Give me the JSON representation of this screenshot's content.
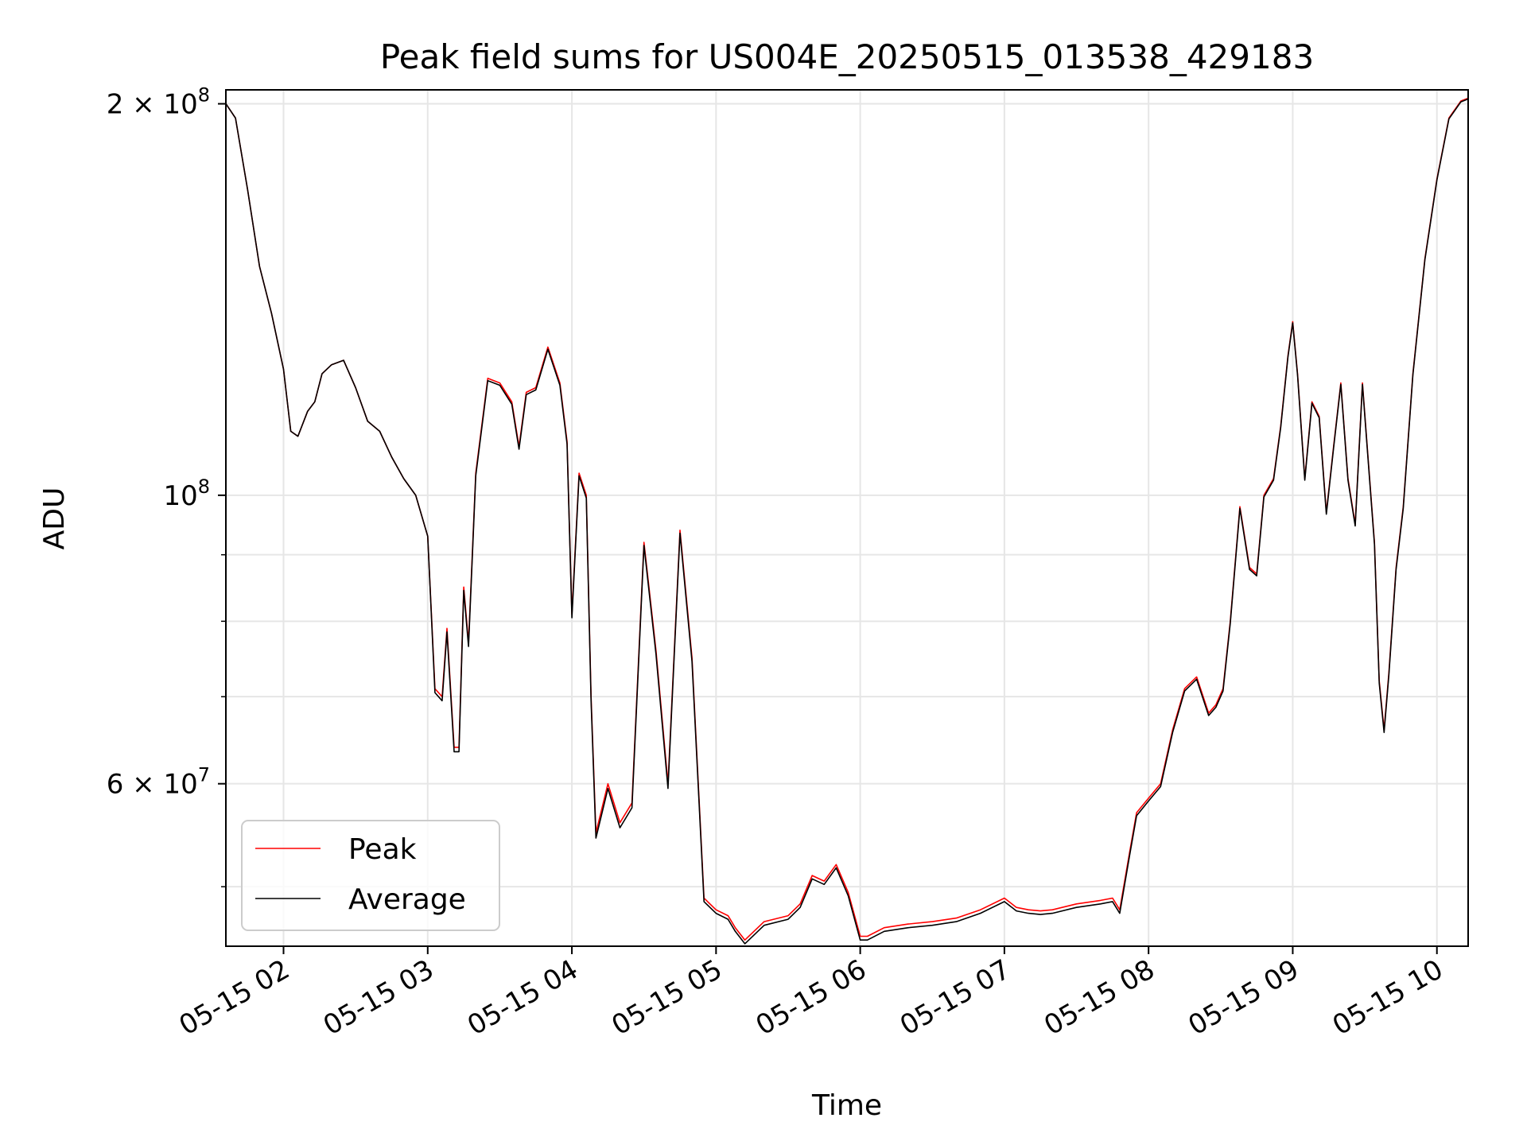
{
  "chart_data": {
    "type": "line",
    "title": "Peak field sums for US004E_20250515_013538_429183",
    "xlabel": "Time",
    "ylabel": "ADU",
    "yscale": "log",
    "ylim": [
      45000000,
      205000000
    ],
    "xlim": [
      "2025-05-15 01:36",
      "2025-05-15 10:13"
    ],
    "x_ticks": [
      {
        "t": "2025-05-15 02:00",
        "label": "05-15 02"
      },
      {
        "t": "2025-05-15 03:00",
        "label": "05-15 03"
      },
      {
        "t": "2025-05-15 04:00",
        "label": "05-15 04"
      },
      {
        "t": "2025-05-15 05:00",
        "label": "05-15 05"
      },
      {
        "t": "2025-05-15 06:00",
        "label": "05-15 06"
      },
      {
        "t": "2025-05-15 07:00",
        "label": "05-15 07"
      },
      {
        "t": "2025-05-15 08:00",
        "label": "05-15 08"
      },
      {
        "t": "2025-05-15 09:00",
        "label": "05-15 09"
      },
      {
        "t": "2025-05-15 10:00",
        "label": "05-15 10"
      }
    ],
    "y_ticks_major": [
      {
        "v": 60000000,
        "mant": "6",
        "exp": "7"
      },
      {
        "v": 100000000,
        "mant": "",
        "exp": "8"
      },
      {
        "v": 200000000,
        "mant": "2",
        "exp": "8"
      }
    ],
    "y_minor_values": [
      50000000,
      70000000,
      80000000,
      90000000
    ],
    "grid": true,
    "legend": {
      "placement": "lower-left"
    },
    "series": [
      {
        "name": "Peak",
        "color": "#ff0000",
        "x": [
          "2025-05-15 01:36",
          "2025-05-15 01:40",
          "2025-05-15 01:45",
          "2025-05-15 01:50",
          "2025-05-15 01:55",
          "2025-05-15 02:00",
          "2025-05-15 02:03",
          "2025-05-15 02:06",
          "2025-05-15 02:10",
          "2025-05-15 02:13",
          "2025-05-15 02:16",
          "2025-05-15 02:20",
          "2025-05-15 02:25",
          "2025-05-15 02:30",
          "2025-05-15 02:35",
          "2025-05-15 02:40",
          "2025-05-15 02:45",
          "2025-05-15 02:50",
          "2025-05-15 02:55",
          "2025-05-15 03:00",
          "2025-05-15 03:03",
          "2025-05-15 03:06",
          "2025-05-15 03:08",
          "2025-05-15 03:11",
          "2025-05-15 03:13",
          "2025-05-15 03:15",
          "2025-05-15 03:17",
          "2025-05-15 03:20",
          "2025-05-15 03:25",
          "2025-05-15 03:30",
          "2025-05-15 03:35",
          "2025-05-15 03:38",
          "2025-05-15 03:41",
          "2025-05-15 03:45",
          "2025-05-15 03:50",
          "2025-05-15 03:55",
          "2025-05-15 03:58",
          "2025-05-15 04:00",
          "2025-05-15 04:03",
          "2025-05-15 04:06",
          "2025-05-15 04:08",
          "2025-05-15 04:10",
          "2025-05-15 04:15",
          "2025-05-15 04:20",
          "2025-05-15 04:25",
          "2025-05-15 04:30",
          "2025-05-15 04:35",
          "2025-05-15 04:40",
          "2025-05-15 04:45",
          "2025-05-15 04:50",
          "2025-05-15 04:55",
          "2025-05-15 05:00",
          "2025-05-15 05:05",
          "2025-05-15 05:08",
          "2025-05-15 05:12",
          "2025-05-15 05:20",
          "2025-05-15 05:30",
          "2025-05-15 05:35",
          "2025-05-15 05:40",
          "2025-05-15 05:45",
          "2025-05-15 05:50",
          "2025-05-15 05:55",
          "2025-05-15 06:00",
          "2025-05-15 06:03",
          "2025-05-15 06:10",
          "2025-05-15 06:20",
          "2025-05-15 06:30",
          "2025-05-15 06:40",
          "2025-05-15 06:50",
          "2025-05-15 07:00",
          "2025-05-15 07:05",
          "2025-05-15 07:10",
          "2025-05-15 07:15",
          "2025-05-15 07:20",
          "2025-05-15 07:30",
          "2025-05-15 07:40",
          "2025-05-15 07:45",
          "2025-05-15 07:48",
          "2025-05-15 07:52",
          "2025-05-15 07:55",
          "2025-05-15 08:00",
          "2025-05-15 08:05",
          "2025-05-15 08:10",
          "2025-05-15 08:15",
          "2025-05-15 08:20",
          "2025-05-15 08:25",
          "2025-05-15 08:28",
          "2025-05-15 08:31",
          "2025-05-15 08:34",
          "2025-05-15 08:38",
          "2025-05-15 08:42",
          "2025-05-15 08:45",
          "2025-05-15 08:48",
          "2025-05-15 08:52",
          "2025-05-15 08:55",
          "2025-05-15 08:58",
          "2025-05-15 09:00",
          "2025-05-15 09:02",
          "2025-05-15 09:05",
          "2025-05-15 09:08",
          "2025-05-15 09:11",
          "2025-05-15 09:14",
          "2025-05-15 09:17",
          "2025-05-15 09:20",
          "2025-05-15 09:23",
          "2025-05-15 09:26",
          "2025-05-15 09:29",
          "2025-05-15 09:31",
          "2025-05-15 09:34",
          "2025-05-15 09:36",
          "2025-05-15 09:38",
          "2025-05-15 09:40",
          "2025-05-15 09:43",
          "2025-05-15 09:46",
          "2025-05-15 09:50",
          "2025-05-15 09:55",
          "2025-05-15 10:00",
          "2025-05-15 10:05",
          "2025-05-15 10:10",
          "2025-05-15 10:13"
        ],
        "y": [
          200000000,
          195000000,
          172000000,
          150000000,
          138000000,
          125000000,
          112000000,
          111000000,
          116000000,
          118000000,
          124000000,
          126000000,
          127000000,
          121000000,
          114000000,
          112000000,
          107000000,
          103000000,
          100000000,
          93000000,
          71000000,
          70000000,
          79000000,
          64000000,
          64000000,
          85000000,
          77000000,
          104000000,
          123000000,
          122000000,
          118000000,
          109000000,
          120000000,
          121000000,
          130000000,
          122000000,
          110000000,
          81000000,
          104000000,
          100000000,
          70000000,
          55000000,
          60000000,
          56000000,
          58000000,
          92000000,
          76000000,
          60000000,
          94000000,
          75000000,
          49000000,
          48000000,
          47500000,
          46500000,
          45500000,
          47000000,
          47500000,
          48500000,
          51000000,
          50500000,
          52000000,
          49500000,
          45800000,
          45800000,
          46500000,
          46800000,
          47000000,
          47300000,
          48000000,
          49000000,
          48200000,
          48000000,
          47900000,
          48000000,
          48500000,
          48800000,
          49000000,
          48000000,
          53000000,
          57000000,
          58500000,
          60000000,
          66000000,
          71000000,
          72500000,
          68000000,
          69000000,
          71000000,
          80000000,
          98000000,
          88000000,
          87000000,
          100000000,
          103000000,
          113000000,
          128000000,
          136000000,
          124000000,
          103000000,
          118000000,
          115000000,
          97000000,
          109000000,
          122000000,
          103000000,
          95000000,
          122000000,
          109000000,
          92000000,
          72000000,
          66000000,
          73000000,
          88000000,
          98000000,
          124000000,
          152000000,
          175000000,
          195000000,
          201000000,
          202000000
        ]
      },
      {
        "name": "Average",
        "color": "#000000",
        "x": [
          "2025-05-15 01:36",
          "2025-05-15 01:40",
          "2025-05-15 01:45",
          "2025-05-15 01:50",
          "2025-05-15 01:55",
          "2025-05-15 02:00",
          "2025-05-15 02:03",
          "2025-05-15 02:06",
          "2025-05-15 02:10",
          "2025-05-15 02:13",
          "2025-05-15 02:16",
          "2025-05-15 02:20",
          "2025-05-15 02:25",
          "2025-05-15 02:30",
          "2025-05-15 02:35",
          "2025-05-15 02:40",
          "2025-05-15 02:45",
          "2025-05-15 02:50",
          "2025-05-15 02:55",
          "2025-05-15 03:00",
          "2025-05-15 03:03",
          "2025-05-15 03:06",
          "2025-05-15 03:08",
          "2025-05-15 03:11",
          "2025-05-15 03:13",
          "2025-05-15 03:15",
          "2025-05-15 03:17",
          "2025-05-15 03:20",
          "2025-05-15 03:25",
          "2025-05-15 03:30",
          "2025-05-15 03:35",
          "2025-05-15 03:38",
          "2025-05-15 03:41",
          "2025-05-15 03:45",
          "2025-05-15 03:50",
          "2025-05-15 03:55",
          "2025-05-15 03:58",
          "2025-05-15 04:00",
          "2025-05-15 04:03",
          "2025-05-15 04:06",
          "2025-05-15 04:08",
          "2025-05-15 04:10",
          "2025-05-15 04:15",
          "2025-05-15 04:20",
          "2025-05-15 04:25",
          "2025-05-15 04:30",
          "2025-05-15 04:35",
          "2025-05-15 04:40",
          "2025-05-15 04:45",
          "2025-05-15 04:50",
          "2025-05-15 04:55",
          "2025-05-15 05:00",
          "2025-05-15 05:05",
          "2025-05-15 05:08",
          "2025-05-15 05:12",
          "2025-05-15 05:20",
          "2025-05-15 05:30",
          "2025-05-15 05:35",
          "2025-05-15 05:40",
          "2025-05-15 05:45",
          "2025-05-15 05:50",
          "2025-05-15 05:55",
          "2025-05-15 06:00",
          "2025-05-15 06:03",
          "2025-05-15 06:10",
          "2025-05-15 06:20",
          "2025-05-15 06:30",
          "2025-05-15 06:40",
          "2025-05-15 06:50",
          "2025-05-15 07:00",
          "2025-05-15 07:05",
          "2025-05-15 07:10",
          "2025-05-15 07:15",
          "2025-05-15 07:20",
          "2025-05-15 07:30",
          "2025-05-15 07:40",
          "2025-05-15 07:45",
          "2025-05-15 07:48",
          "2025-05-15 07:52",
          "2025-05-15 07:55",
          "2025-05-15 08:00",
          "2025-05-15 08:05",
          "2025-05-15 08:10",
          "2025-05-15 08:15",
          "2025-05-15 08:20",
          "2025-05-15 08:25",
          "2025-05-15 08:28",
          "2025-05-15 08:31",
          "2025-05-15 08:34",
          "2025-05-15 08:38",
          "2025-05-15 08:42",
          "2025-05-15 08:45",
          "2025-05-15 08:48",
          "2025-05-15 08:52",
          "2025-05-15 08:55",
          "2025-05-15 08:58",
          "2025-05-15 09:00",
          "2025-05-15 09:02",
          "2025-05-15 09:05",
          "2025-05-15 09:08",
          "2025-05-15 09:11",
          "2025-05-15 09:14",
          "2025-05-15 09:17",
          "2025-05-15 09:20",
          "2025-05-15 09:23",
          "2025-05-15 09:26",
          "2025-05-15 09:29",
          "2025-05-15 09:31",
          "2025-05-15 09:34",
          "2025-05-15 09:36",
          "2025-05-15 09:38",
          "2025-05-15 09:40",
          "2025-05-15 09:43",
          "2025-05-15 09:46",
          "2025-05-15 09:50",
          "2025-05-15 09:55",
          "2025-05-15 10:00",
          "2025-05-15 10:05",
          "2025-05-15 10:10",
          "2025-05-15 10:13"
        ],
        "y": [
          200000000,
          195000000,
          172000000,
          150000000,
          138000000,
          125000000,
          112000000,
          111000000,
          116000000,
          118000000,
          124000000,
          126000000,
          127000000,
          121000000,
          114000000,
          112000000,
          107000000,
          103000000,
          100000000,
          93000000,
          70500000,
          69500000,
          78500000,
          63500000,
          63500000,
          84500000,
          76500000,
          103500000,
          122500000,
          121500000,
          117500000,
          108500000,
          119500000,
          120500000,
          129500000,
          121500000,
          109500000,
          80500000,
          103500000,
          99500000,
          69500000,
          54500000,
          59500000,
          55500000,
          57500000,
          91500000,
          75500000,
          59500000,
          93500000,
          74500000,
          48700000,
          47700000,
          47200000,
          46200000,
          45200000,
          46700000,
          47200000,
          48200000,
          50700000,
          50200000,
          51700000,
          49200000,
          45500000,
          45500000,
          46200000,
          46500000,
          46700000,
          47000000,
          47700000,
          48700000,
          47900000,
          47700000,
          47600000,
          47700000,
          48200000,
          48500000,
          48700000,
          47700000,
          52700000,
          56700000,
          58200000,
          59700000,
          65700000,
          70700000,
          72200000,
          67700000,
          68700000,
          70700000,
          79700000,
          97700000,
          87700000,
          86700000,
          99700000,
          102700000,
          112700000,
          127700000,
          135700000,
          123700000,
          102700000,
          117700000,
          114700000,
          96700000,
          108700000,
          121700000,
          102700000,
          94700000,
          121700000,
          108700000,
          91700000,
          71700000,
          65700000,
          72700000,
          87700000,
          97700000,
          123700000,
          151700000,
          174700000,
          194700000,
          200700000,
          201700000
        ]
      }
    ]
  }
}
